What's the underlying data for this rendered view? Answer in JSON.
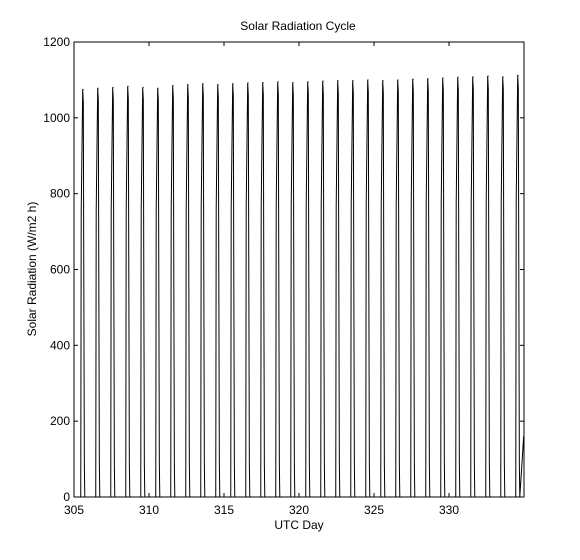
{
  "chart_data": {
    "type": "line",
    "title": "Solar Radiation Cycle",
    "xlabel": "UTC Day",
    "ylabel": "Solar Radiation (W/m2 h)",
    "xlim": [
      305,
      335
    ],
    "ylim": [
      0,
      1200
    ],
    "xticks": [
      305,
      310,
      315,
      320,
      325,
      330
    ],
    "yticks": [
      0,
      200,
      400,
      600,
      800,
      1000,
      1200
    ],
    "grid": false,
    "line_color": "#000000",
    "series": [
      {
        "daily_peaks": [
          {
            "day": 305.6,
            "value": 1075
          },
          {
            "day": 306.6,
            "value": 1078
          },
          {
            "day": 307.6,
            "value": 1080
          },
          {
            "day": 308.6,
            "value": 1083
          },
          {
            "day": 309.6,
            "value": 1080
          },
          {
            "day": 310.6,
            "value": 1078
          },
          {
            "day": 311.6,
            "value": 1085
          },
          {
            "day": 312.6,
            "value": 1088
          },
          {
            "day": 313.6,
            "value": 1090
          },
          {
            "day": 314.6,
            "value": 1088
          },
          {
            "day": 315.6,
            "value": 1090
          },
          {
            "day": 316.6,
            "value": 1092
          },
          {
            "day": 317.6,
            "value": 1093
          },
          {
            "day": 318.6,
            "value": 1095
          },
          {
            "day": 319.6,
            "value": 1093
          },
          {
            "day": 320.6,
            "value": 1095
          },
          {
            "day": 321.6,
            "value": 1097
          },
          {
            "day": 322.6,
            "value": 1098
          },
          {
            "day": 323.6,
            "value": 1098
          },
          {
            "day": 324.6,
            "value": 1100
          },
          {
            "day": 325.6,
            "value": 1098
          },
          {
            "day": 326.6,
            "value": 1100
          },
          {
            "day": 327.6,
            "value": 1102
          },
          {
            "day": 328.6,
            "value": 1103
          },
          {
            "day": 329.6,
            "value": 1105
          },
          {
            "day": 330.6,
            "value": 1107
          },
          {
            "day": 331.6,
            "value": 1108
          },
          {
            "day": 332.6,
            "value": 1110
          },
          {
            "day": 333.6,
            "value": 1108
          },
          {
            "day": 334.6,
            "value": 1112
          }
        ],
        "daylight_start_fraction": 0.45,
        "daylight_end_fraction": 0.72,
        "end_value": 160
      }
    ]
  }
}
